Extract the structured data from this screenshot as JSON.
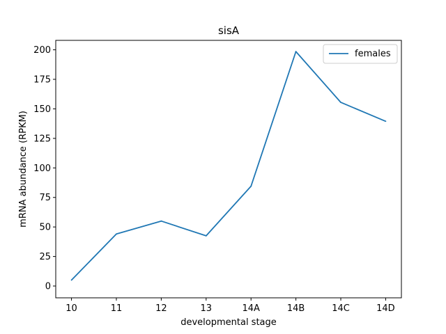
{
  "chart_data": {
    "type": "line",
    "title": "sisA",
    "xlabel": "developmental stage",
    "ylabel": "mRNA abundance (RPKM)",
    "categories": [
      "10",
      "11",
      "12",
      "13",
      "14A",
      "14B",
      "14C",
      "14D"
    ],
    "series": [
      {
        "name": "females",
        "color": "#1f77b4",
        "values": [
          5,
          44,
          55,
          42.5,
          84.5,
          198.5,
          155.5,
          139.5
        ]
      }
    ],
    "ylim": [
      -10,
      208
    ],
    "yticks": [
      0,
      25,
      50,
      75,
      100,
      125,
      150,
      175,
      200
    ],
    "grid": false,
    "legend": "top-right"
  }
}
